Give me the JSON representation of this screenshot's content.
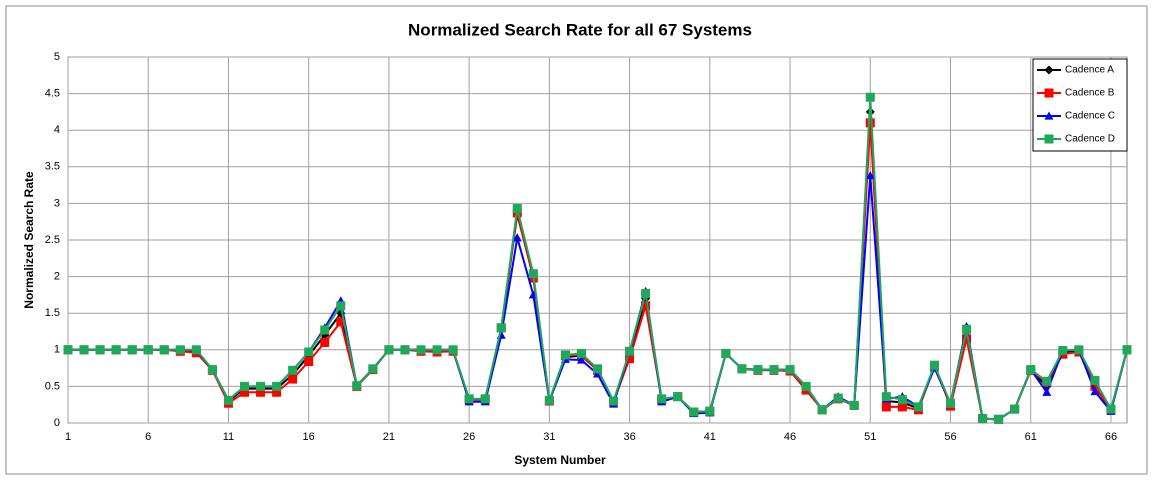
{
  "chart_data": {
    "type": "line",
    "title": "Normalized Search Rate for all 67 Systems",
    "xlabel": "System Number",
    "ylabel": "Normalized Search Rate",
    "x": [
      1,
      2,
      3,
      4,
      5,
      6,
      7,
      8,
      9,
      10,
      11,
      12,
      13,
      14,
      15,
      16,
      17,
      18,
      19,
      20,
      21,
      22,
      23,
      24,
      25,
      26,
      27,
      28,
      29,
      30,
      31,
      32,
      33,
      34,
      35,
      36,
      37,
      38,
      39,
      40,
      41,
      42,
      43,
      44,
      45,
      46,
      47,
      48,
      49,
      50,
      51,
      52,
      53,
      54,
      55,
      56,
      57,
      58,
      59,
      60,
      61,
      62,
      63,
      64,
      65,
      66,
      67
    ],
    "series": [
      {
        "name": "Cadence A",
        "color": "#000000",
        "marker": "diamond",
        "values": [
          1,
          1,
          1,
          1,
          1,
          1,
          1,
          0.99,
          0.98,
          0.73,
          0.3,
          0.47,
          0.47,
          0.47,
          0.66,
          0.92,
          1.2,
          1.5,
          0.51,
          0.74,
          1,
          1,
          1,
          0.99,
          0.99,
          0.32,
          0.32,
          1.28,
          2.85,
          2,
          0.3,
          0.9,
          0.92,
          0.72,
          0.29,
          0.95,
          1.7,
          0.32,
          0.36,
          0.15,
          0.16,
          0.95,
          0.74,
          0.73,
          0.73,
          0.72,
          0.48,
          0.18,
          0.33,
          0.24,
          4.25,
          0.3,
          0.28,
          0.2,
          0.77,
          0.25,
          1.25,
          0.06,
          0.05,
          0.19,
          0.72,
          0.5,
          0.97,
          0.99,
          0.5,
          0.18,
          1
        ]
      },
      {
        "name": "Cadence B",
        "color": "#ff0000",
        "marker": "square",
        "values": [
          1,
          1,
          1,
          1,
          1,
          1,
          1,
          0.98,
          0.96,
          0.72,
          0.27,
          0.42,
          0.42,
          0.42,
          0.6,
          0.84,
          1.1,
          1.38,
          0.5,
          0.73,
          1,
          1,
          0.98,
          0.97,
          0.98,
          0.32,
          0.32,
          1.3,
          2.87,
          1.98,
          0.3,
          0.92,
          0.93,
          0.72,
          0.29,
          0.88,
          1.6,
          0.32,
          0.36,
          0.15,
          0.16,
          0.95,
          0.74,
          0.72,
          0.72,
          0.71,
          0.45,
          0.18,
          0.33,
          0.24,
          4.1,
          0.22,
          0.22,
          0.18,
          0.78,
          0.23,
          1.15,
          0.06,
          0.05,
          0.19,
          0.72,
          0.55,
          0.94,
          0.97,
          0.5,
          0.18,
          1
        ]
      },
      {
        "name": "Cadence C",
        "color": "#0000ff",
        "marker": "triangle",
        "values": [
          1,
          1,
          1,
          1,
          1,
          1,
          1,
          1,
          0.99,
          0.73,
          0.31,
          0.5,
          0.5,
          0.5,
          0.72,
          0.97,
          1.3,
          1.67,
          0.51,
          0.74,
          1,
          1,
          1,
          1,
          1,
          0.29,
          0.29,
          1.2,
          2.53,
          1.75,
          0.3,
          0.87,
          0.86,
          0.67,
          0.26,
          0.97,
          1.8,
          0.29,
          0.36,
          0.13,
          0.14,
          0.95,
          0.74,
          0.73,
          0.73,
          0.73,
          0.5,
          0.18,
          0.36,
          0.24,
          3.38,
          0.33,
          0.36,
          0.22,
          0.75,
          0.27,
          1.32,
          0.06,
          0.05,
          0.19,
          0.73,
          0.42,
          0.99,
          1,
          0.43,
          0.16,
          1
        ]
      },
      {
        "name": "Cadence D",
        "color": "#1fa85a",
        "marker": "square",
        "values": [
          1,
          1,
          1,
          1,
          1,
          1,
          1,
          1,
          1,
          0.73,
          0.31,
          0.5,
          0.5,
          0.5,
          0.72,
          0.97,
          1.27,
          1.6,
          0.51,
          0.74,
          1,
          1,
          1,
          1,
          1,
          0.33,
          0.33,
          1.3,
          2.93,
          2.04,
          0.31,
          0.93,
          0.95,
          0.74,
          0.3,
          0.98,
          1.77,
          0.33,
          0.36,
          0.15,
          0.16,
          0.95,
          0.74,
          0.73,
          0.73,
          0.73,
          0.5,
          0.18,
          0.34,
          0.24,
          4.45,
          0.36,
          0.32,
          0.22,
          0.79,
          0.27,
          1.28,
          0.06,
          0.05,
          0.19,
          0.73,
          0.57,
          0.99,
          1,
          0.58,
          0.19,
          1
        ]
      }
    ],
    "xlim": [
      1,
      67
    ],
    "xticks": [
      1,
      6,
      11,
      16,
      21,
      26,
      31,
      36,
      41,
      46,
      51,
      56,
      61,
      66
    ],
    "ylim": [
      0,
      5
    ],
    "yticks": [
      0,
      0.5,
      1,
      1.5,
      2,
      2.5,
      3,
      3.5,
      4,
      4.5,
      5
    ],
    "grid": true,
    "legend": "top-right"
  }
}
